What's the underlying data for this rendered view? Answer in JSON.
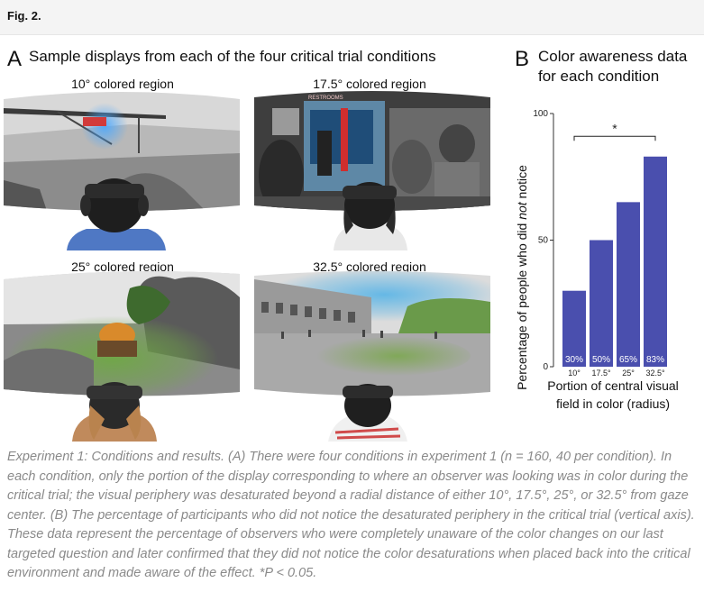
{
  "figure_label": "Fig. 2.",
  "panel_a": {
    "letter": "A",
    "title": "Sample displays from each of the four critical trial conditions",
    "conditions": [
      {
        "label": "10° colored region",
        "scene": "construction-site"
      },
      {
        "label": "17.5° colored region",
        "scene": "classroom-hallway",
        "sign_text": "RESTROOMS"
      },
      {
        "label": "25° colored region",
        "scene": "pumpkin-field"
      },
      {
        "label": "32.5° colored region",
        "scene": "colosseum"
      }
    ]
  },
  "panel_b": {
    "letter": "B",
    "title_line1": "Color awareness data",
    "title_line2": "for each condition"
  },
  "chart_data": {
    "type": "bar",
    "categories": [
      "10°",
      "17.5°",
      "25°",
      "32.5°"
    ],
    "values": [
      30,
      50,
      65,
      83
    ],
    "value_labels": [
      "30%",
      "50%",
      "65%",
      "83%"
    ],
    "ylabel_parts": [
      "Percentage of people who did ",
      "not",
      " notice"
    ],
    "xlabel_line1": "Portion of central visual",
    "xlabel_line2": "field in color (radius)",
    "ylim": [
      0,
      100
    ],
    "yticks": [
      0,
      50,
      100
    ],
    "significance": "*",
    "bar_color": "#4a4fae",
    "grid": false
  },
  "caption": "Experiment 1: Conditions and results. (A) There were four conditions in experiment 1 (n = 160, 40 per condition). In each condition, only the portion of the display corresponding to where an observer was looking was in color during the critical trial; the visual periphery was desaturated beyond a radial distance of either 10°, 17.5°, 25°, or 32.5° from gaze center. (B) The percentage of participants who did not notice the desaturated periphery in the critical trial (vertical axis). These data represent the percentage of observers who were completely unaware of the color changes on our last targeted question and later confirmed that they did not notice the color desaturations when placed back into the critical environment and made aware of the effect. *P < 0.05."
}
